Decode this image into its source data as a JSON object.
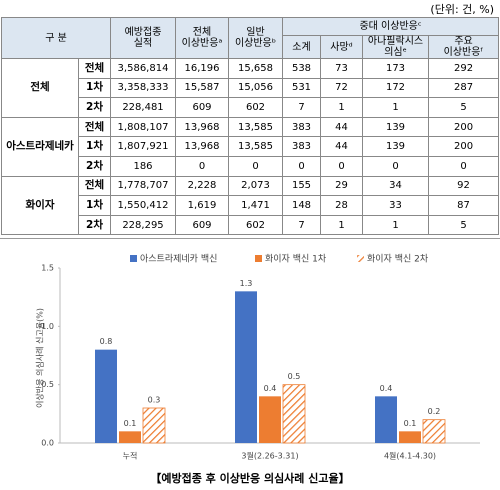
{
  "table": {
    "unit": "(단위: 건, %)",
    "header": {
      "group": "구 분",
      "columns": [
        "예방접종\n실적",
        "전체\n이상반응ᵃ",
        "일반\n이상반응ᵇ"
      ],
      "serious": "중대 이상반응ᶜ",
      "serious_columns": [
        "소계",
        "사망ᵈ",
        "아나필락시스\n의심ᵉ",
        "주요\n이상반응ᶠ"
      ]
    },
    "groups": [
      {
        "name": "전체",
        "rows": [
          {
            "label": "전체",
            "cells": [
              "3,586,814",
              "16,196",
              "15,658",
              "538",
              "73",
              "173",
              "292"
            ]
          },
          {
            "label": "1차",
            "cells": [
              "3,358,333",
              "15,587",
              "15,056",
              "531",
              "72",
              "172",
              "287"
            ]
          },
          {
            "label": "2차",
            "cells": [
              "228,481",
              "609",
              "602",
              "7",
              "1",
              "1",
              "5"
            ]
          }
        ]
      },
      {
        "name": "아스트라제네카",
        "rows": [
          {
            "label": "전체",
            "cells": [
              "1,808,107",
              "13,968",
              "13,585",
              "383",
              "44",
              "139",
              "200"
            ]
          },
          {
            "label": "1차",
            "cells": [
              "1,807,921",
              "13,968",
              "13,585",
              "383",
              "44",
              "139",
              "200"
            ]
          },
          {
            "label": "2차",
            "cells": [
              "186",
              "0",
              "0",
              "0",
              "0",
              "0",
              "0"
            ]
          }
        ]
      },
      {
        "name": "화이자",
        "rows": [
          {
            "label": "전체",
            "cells": [
              "1,778,707",
              "2,228",
              "2,073",
              "155",
              "29",
              "34",
              "92"
            ]
          },
          {
            "label": "1차",
            "cells": [
              "1,550,412",
              "1,619",
              "1,471",
              "148",
              "28",
              "33",
              "87"
            ]
          },
          {
            "label": "2차",
            "cells": [
              "228,295",
              "609",
              "602",
              "7",
              "1",
              "1",
              "5"
            ]
          }
        ]
      }
    ]
  },
  "chart_data": {
    "type": "bar",
    "caption": "【예방접종 후 이상반응 의심사례 신고율】",
    "y_label": "이상반응 의심사례 신고율(%)",
    "categories": [
      "누적",
      "3월(2.26-3.31)",
      "4월(4.1-4.30)"
    ],
    "series": [
      {
        "name": "아스트라제네카 백신",
        "color": "#4472c4",
        "values": [
          0.8,
          1.3,
          0.4
        ]
      },
      {
        "name": "화이자 백신 1차",
        "color": "#ed7d31",
        "values": [
          0.1,
          0.4,
          0.1
        ]
      },
      {
        "name": "화이자 백신 2차",
        "color": "#ed7d31",
        "hatch": true,
        "values": [
          0.3,
          0.5,
          0.2
        ]
      }
    ],
    "ylim": [
      0,
      1.5
    ],
    "yticks": [
      {
        "value": 0,
        "label": "0.0"
      },
      0.5,
      {
        "value": 1,
        "label": "1.0"
      },
      1.5
    ]
  }
}
